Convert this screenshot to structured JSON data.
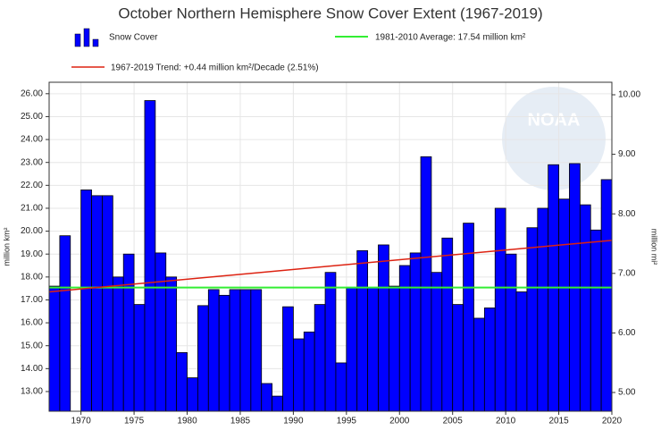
{
  "chart_data": {
    "type": "bar",
    "title": "October Northern Hemisphere Snow Cover Extent (1967-2019)",
    "watermark": "NOAA",
    "y_label": "million km²",
    "y2_label": "million mi²",
    "series": [
      {
        "name": "Snow Cover",
        "color": "#0000ff",
        "x": [
          1967,
          1968,
          1969,
          1970,
          1971,
          1972,
          1973,
          1974,
          1975,
          1976,
          1977,
          1978,
          1979,
          1980,
          1981,
          1982,
          1983,
          1984,
          1985,
          1986,
          1987,
          1988,
          1989,
          1990,
          1991,
          1992,
          1993,
          1994,
          1995,
          1996,
          1997,
          1998,
          1999,
          2000,
          2001,
          2002,
          2003,
          2004,
          2005,
          2006,
          2007,
          2008,
          2009,
          2010,
          2011,
          2012,
          2013,
          2014,
          2015,
          2016,
          2017,
          2018,
          2019
        ],
        "values": [
          17.6,
          19.8,
          null,
          21.8,
          21.55,
          21.55,
          18.0,
          19.0,
          16.8,
          25.7,
          19.05,
          18.0,
          14.7,
          13.6,
          16.75,
          17.45,
          17.2,
          17.45,
          17.45,
          17.45,
          13.35,
          12.8,
          16.7,
          15.3,
          15.6,
          16.8,
          18.2,
          14.25,
          17.55,
          19.15,
          17.55,
          19.4,
          17.6,
          18.5,
          19.05,
          23.25,
          18.2,
          19.7,
          16.8,
          20.35,
          16.2,
          16.65,
          21.0,
          19.0,
          17.35,
          20.15,
          21.0,
          22.9,
          21.4,
          22.95,
          21.15,
          20.05,
          22.25
        ]
      }
    ],
    "average": {
      "name": "1981-2010 Average: 17.54 million km²",
      "color": "#33ee33",
      "value": 17.54
    },
    "trend": {
      "name": "1967-2019 Trend: +0.44 million km²/Decade (2.51%)",
      "color": "#dd2211",
      "x": [
        1967,
        2020
      ],
      "values": [
        17.35,
        19.6
      ]
    },
    "xlim": [
      1967,
      2020
    ],
    "xticks": [
      1970,
      1975,
      1980,
      1985,
      1990,
      1995,
      2000,
      2005,
      2010,
      2015,
      2020
    ],
    "ylim": [
      12.14,
      26.5
    ],
    "yticks": [
      {
        "value": 13,
        "label": "13.00"
      },
      {
        "value": 14,
        "label": "14.00"
      },
      {
        "value": 15,
        "label": "15.00"
      },
      {
        "value": 16,
        "label": "16.00"
      },
      {
        "value": 17,
        "label": "17.00"
      },
      {
        "value": 18,
        "label": "18.00"
      },
      {
        "value": 19,
        "label": "19.00"
      },
      {
        "value": 20,
        "label": "20.00"
      },
      {
        "value": 21,
        "label": "21.00"
      },
      {
        "value": 22,
        "label": "22.00"
      },
      {
        "value": 23,
        "label": "23.00"
      },
      {
        "value": 24,
        "label": "24.00"
      },
      {
        "value": 25,
        "label": "25.00"
      },
      {
        "value": 26,
        "label": "26.00"
      }
    ],
    "y2lim": [
      4.685,
      10.21
    ],
    "y2ticks": [
      {
        "value": 5,
        "label": "5.00"
      },
      {
        "value": 6,
        "label": "6.00"
      },
      {
        "value": 7,
        "label": "7.00"
      },
      {
        "value": 8,
        "label": "8.00"
      },
      {
        "value": 9,
        "label": "9.00"
      },
      {
        "value": 10,
        "label": "10.00"
      }
    ],
    "grid": true
  }
}
